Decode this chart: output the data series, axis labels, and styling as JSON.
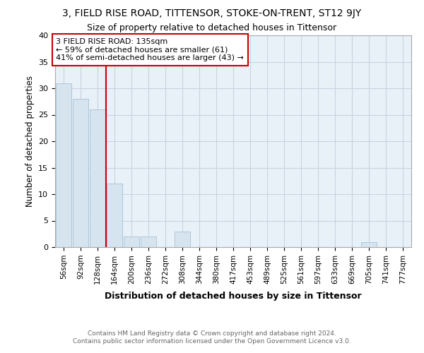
{
  "title": "3, FIELD RISE ROAD, TITTENSOR, STOKE-ON-TRENT, ST12 9JY",
  "subtitle": "Size of property relative to detached houses in Tittensor",
  "xlabel": "Distribution of detached houses by size in Tittensor",
  "ylabel": "Number of detached properties",
  "bar_labels": [
    "56sqm",
    "92sqm",
    "128sqm",
    "164sqm",
    "200sqm",
    "236sqm",
    "272sqm",
    "308sqm",
    "344sqm",
    "380sqm",
    "417sqm",
    "453sqm",
    "489sqm",
    "525sqm",
    "561sqm",
    "597sqm",
    "633sqm",
    "669sqm",
    "705sqm",
    "741sqm",
    "777sqm"
  ],
  "bar_values": [
    31,
    28,
    26,
    12,
    2,
    2,
    0,
    3,
    0,
    0,
    0,
    0,
    0,
    0,
    0,
    0,
    0,
    0,
    1,
    0,
    0
  ],
  "bar_color": "#d6e4f0",
  "bar_edgecolor": "#aec6d8",
  "vline_x": 2.5,
  "vline_color": "#cc0000",
  "annotation_text": "3 FIELD RISE ROAD: 135sqm\n← 59% of detached houses are smaller (61)\n41% of semi-detached houses are larger (43) →",
  "annotation_box_color": "#ffffff",
  "annotation_box_edgecolor": "#cc0000",
  "ylim": [
    0,
    40
  ],
  "yticks": [
    0,
    5,
    10,
    15,
    20,
    25,
    30,
    35,
    40
  ],
  "background_color": "#ffffff",
  "plot_bg_color": "#e8f0f8",
  "grid_color": "#c8d4e0",
  "footer_line1": "Contains HM Land Registry data © Crown copyright and database right 2024.",
  "footer_line2": "Contains public sector information licensed under the Open Government Licence v3.0."
}
